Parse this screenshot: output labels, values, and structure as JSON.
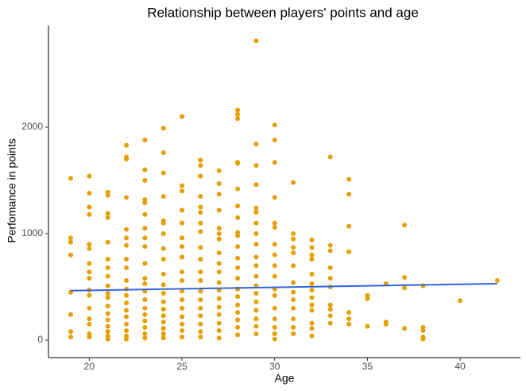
{
  "chart_data": {
    "type": "scatter",
    "title": "Relationship between players' points and age",
    "x_label": "Age",
    "y_label": "Perfomance in points",
    "xlim": [
      17.8,
      43.25
    ],
    "ylim": [
      -164,
      2955
    ],
    "xticks": [
      20,
      25,
      30,
      35,
      40
    ],
    "yticks": [
      0,
      1000,
      2000
    ],
    "series": [
      {
        "color": "#E69F00",
        "x": [
          19,
          19,
          19,
          19,
          19,
          19,
          19,
          19,
          20,
          20,
          20,
          20,
          20,
          20,
          20,
          20,
          20,
          20,
          20,
          20,
          20,
          20,
          20,
          20,
          21,
          21,
          21,
          21,
          21,
          21,
          21,
          21,
          21,
          21,
          21,
          21,
          21,
          21,
          21,
          21,
          21,
          21,
          22,
          22,
          22,
          22,
          22,
          22,
          22,
          22,
          22,
          22,
          22,
          22,
          22,
          22,
          22,
          22,
          22,
          22,
          22,
          23,
          23,
          23,
          23,
          23,
          23,
          23,
          23,
          23,
          23,
          23,
          23,
          23,
          23,
          23,
          23,
          23,
          23,
          23,
          23,
          24,
          24,
          24,
          24,
          24,
          24,
          24,
          24,
          24,
          24,
          24,
          24,
          24,
          24,
          24,
          24,
          24,
          24,
          24,
          25,
          25,
          25,
          25,
          25,
          25,
          25,
          25,
          25,
          25,
          25,
          25,
          25,
          25,
          25,
          25,
          25,
          26,
          26,
          26,
          26,
          26,
          26,
          26,
          26,
          26,
          26,
          26,
          26,
          26,
          26,
          26,
          26,
          26,
          26,
          26,
          27,
          27,
          27,
          27,
          27,
          27,
          27,
          27,
          27,
          27,
          27,
          27,
          27,
          27,
          27,
          27,
          27,
          27,
          28,
          28,
          28,
          28,
          28,
          28,
          28,
          28,
          28,
          28,
          28,
          28,
          28,
          28,
          28,
          28,
          28,
          28,
          28,
          28,
          28,
          29,
          29,
          29,
          29,
          29,
          29,
          29,
          29,
          29,
          29,
          29,
          29,
          29,
          29,
          29,
          29,
          29,
          29,
          29,
          30,
          30,
          30,
          30,
          30,
          30,
          30,
          30,
          30,
          30,
          30,
          30,
          30,
          30,
          30,
          30,
          30,
          31,
          31,
          31,
          31,
          31,
          31,
          31,
          31,
          31,
          31,
          31,
          31,
          31,
          32,
          32,
          32,
          32,
          32,
          32,
          32,
          32,
          32,
          32,
          32,
          32,
          32,
          33,
          33,
          33,
          33,
          33,
          33,
          33,
          33,
          33,
          33,
          34,
          34,
          34,
          34,
          34,
          34,
          34,
          35,
          35,
          35,
          36,
          36,
          36,
          37,
          37,
          37,
          37,
          38,
          38,
          38,
          38,
          38,
          40,
          42
        ],
        "values": [
          1520,
          960,
          920,
          800,
          450,
          240,
          80,
          30,
          1540,
          1380,
          1250,
          1180,
          900,
          860,
          720,
          640,
          580,
          470,
          420,
          300,
          200,
          150,
          60,
          30,
          1390,
          1360,
          1190,
          1150,
          920,
          760,
          680,
          600,
          510,
          440,
          400,
          320,
          250,
          190,
          130,
          80,
          40,
          10,
          1830,
          1720,
          1700,
          1340,
          1040,
          960,
          890,
          760,
          680,
          560,
          480,
          420,
          350,
          280,
          220,
          150,
          90,
          40,
          10,
          1880,
          1600,
          1500,
          1320,
          1290,
          1180,
          1050,
          960,
          880,
          720,
          580,
          530,
          460,
          380,
          300,
          240,
          180,
          120,
          60,
          20,
          1990,
          1760,
          1570,
          1350,
          1120,
          1100,
          1000,
          860,
          760,
          620,
          520,
          440,
          360,
          290,
          230,
          170,
          110,
          60,
          20,
          2100,
          1450,
          1400,
          1220,
          1100,
          960,
          880,
          780,
          640,
          560,
          460,
          380,
          300,
          220,
          150,
          90,
          30,
          1690,
          1640,
          1540,
          1350,
          1250,
          1200,
          1100,
          1020,
          870,
          760,
          640,
          560,
          460,
          380,
          300,
          230,
          150,
          80,
          30,
          1590,
          1470,
          1370,
          1220,
          1050,
          1000,
          950,
          820,
          720,
          640,
          540,
          470,
          390,
          310,
          240,
          160,
          90,
          20,
          2160,
          2120,
          2080,
          1670,
          1660,
          1420,
          1260,
          1150,
          1010,
          980,
          880,
          770,
          680,
          580,
          480,
          410,
          330,
          260,
          190,
          120,
          50,
          2810,
          1840,
          1640,
          1460,
          1240,
          1200,
          1100,
          1000,
          900,
          780,
          700,
          600,
          510,
          440,
          360,
          280,
          200,
          130,
          60,
          2020,
          1880,
          1670,
          1340,
          1100,
          1060,
          900,
          800,
          700,
          600,
          480,
          420,
          300,
          200,
          120,
          60,
          10,
          1480,
          1000,
          950,
          870,
          820,
          700,
          540,
          450,
          380,
          300,
          200,
          120,
          60,
          940,
          870,
          800,
          760,
          620,
          530,
          470,
          400,
          330,
          280,
          160,
          110,
          40,
          1720,
          890,
          840,
          680,
          580,
          500,
          330,
          290,
          230,
          160,
          1510,
          1370,
          1070,
          830,
          260,
          200,
          150,
          420,
          390,
          130,
          530,
          170,
          150,
          1080,
          590,
          490,
          110,
          510,
          120,
          90,
          30,
          10,
          370,
          560
        ]
      }
    ],
    "trend": {
      "color": "#3366dd",
      "x": [
        19,
        42
      ],
      "values": [
        465,
        530
      ]
    }
  }
}
